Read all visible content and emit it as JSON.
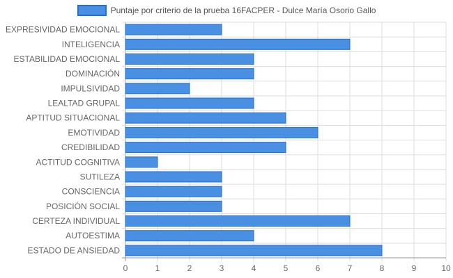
{
  "chart_data": {
    "type": "bar",
    "orientation": "horizontal",
    "categories": [
      "EXPRESIVIDAD EMOCIONAL",
      "INTELIGENCIA",
      "ESTABILIDAD EMOCIONAL",
      "DOMINACIÓN",
      "IMPULSIVIDAD",
      "LEALTAD GRUPAL",
      "APTITUD SITUACIONAL",
      "EMOTIVIDAD",
      "CREDIBILIDAD",
      "ACTITUD COGNITIVA",
      "SUTILEZA",
      "CONSCIENCIA",
      "POSICIÓN SOCIAL",
      "CERTEZA INDIVIDUAL",
      "AUTOESTIMA",
      "ESTADO DE ANSIEDAD"
    ],
    "series": [
      {
        "name": "Puntaje por criterio de la prueba 16FACPER - Dulce María Osorio Gallo",
        "values": [
          3,
          7,
          4,
          4,
          2,
          4,
          5,
          6,
          5,
          1,
          3,
          3,
          3,
          7,
          4,
          8
        ]
      }
    ],
    "xlim": [
      0,
      10
    ],
    "xticks": [
      "0",
      "1",
      "2",
      "3",
      "4",
      "5",
      "6",
      "7",
      "8",
      "9",
      "10"
    ],
    "grid": true,
    "legend_position": "top-center",
    "colors": {
      "bar_fill": "#4a90e2",
      "bar_border": "#1e6fd9",
      "grid": "#dddddd",
      "axis": "#999999"
    }
  }
}
